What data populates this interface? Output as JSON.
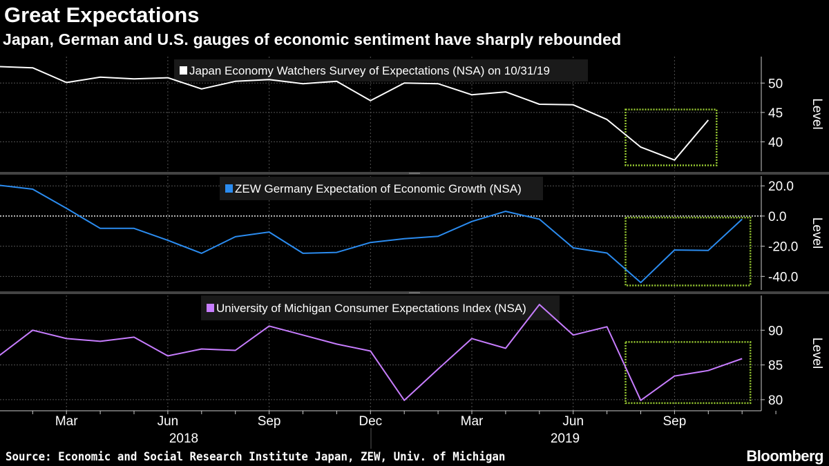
{
  "header": {
    "title": "Great Expectations",
    "subtitle": "Japan, German and U.S. gauges of economic sentiment have sharply rebounded"
  },
  "footer": {
    "source": "Source: Economic and Social Research Institute Japan, ZEW, Univ. of Michigan",
    "logo": "Bloomberg"
  },
  "colors": {
    "background": "#000000",
    "japan": "#ffffff",
    "zew": "#2b8cf0",
    "michigan": "#c77dff",
    "highlight_box": "#9acd32",
    "grid": "#666666"
  },
  "chart_data": [
    {
      "type": "line",
      "name": "Japan Economy Watchers Survey of Expectations (NSA) on 10/31/19",
      "ylabel": "Level",
      "ylim": [
        35,
        54.5
      ],
      "yticks": [
        40,
        45,
        50
      ],
      "tick_format": "0",
      "x_start": "2018-01",
      "color": "#ffffff",
      "values": [
        52.8,
        52.6,
        50.1,
        51.0,
        50.7,
        50.9,
        49.0,
        50.3,
        50.6,
        49.9,
        50.3,
        47.0,
        50.0,
        49.9,
        48.0,
        48.5,
        46.4,
        46.3,
        43.8,
        39.1,
        36.9,
        43.7
      ],
      "highlight": {
        "from": "2019-08",
        "to": "2019-10",
        "ymin": 36,
        "ymax": 45.5
      }
    },
    {
      "type": "line",
      "name": "ZEW Germany Expectation of Economic Growth (NSA)",
      "ylabel": "Level",
      "ylim": [
        -49,
        26.5
      ],
      "yticks": [
        -40,
        -20,
        0,
        20
      ],
      "tick_format": "0.0",
      "zero_line": true,
      "x_start": "2018-01",
      "color": "#2b8cf0",
      "values": [
        20.4,
        17.8,
        5.1,
        -8.2,
        -8.2,
        -16.1,
        -24.7,
        -13.7,
        -10.6,
        -24.7,
        -24.1,
        -17.5,
        -15.0,
        -13.4,
        -3.6,
        3.1,
        -2.1,
        -21.1,
        -24.5,
        -44.1,
        -22.5,
        -22.8,
        -2.1
      ],
      "highlight": {
        "from": "2019-08",
        "to": "2019-11",
        "ymin": -46,
        "ymax": -1
      }
    },
    {
      "type": "line",
      "name": "University of Michigan Consumer Expectations Index (NSA)",
      "ylabel": "Level",
      "ylim": [
        78.4,
        95
      ],
      "yticks": [
        80,
        85,
        90
      ],
      "tick_format": "0",
      "x_start": "2018-01",
      "color": "#c77dff",
      "values": [
        86.3,
        90.0,
        88.8,
        88.4,
        89.0,
        86.3,
        87.3,
        87.1,
        90.6,
        89.3,
        88.0,
        87.0,
        79.9,
        84.4,
        88.8,
        87.4,
        93.7,
        89.3,
        90.5,
        79.9,
        83.4,
        84.2,
        85.9
      ],
      "highlight": {
        "from": "2019-08",
        "to": "2019-11",
        "ymin": 79.5,
        "ymax": 88.3
      }
    }
  ],
  "x_axis": {
    "month_labels": [
      {
        "label": "Mar",
        "date": "2018-03"
      },
      {
        "label": "Jun",
        "date": "2018-06"
      },
      {
        "label": "Sep",
        "date": "2018-09"
      },
      {
        "label": "Dec",
        "date": "2018-12"
      },
      {
        "label": "Mar",
        "date": "2019-03"
      },
      {
        "label": "Jun",
        "date": "2019-06"
      },
      {
        "label": "Sep",
        "date": "2019-09"
      }
    ],
    "year_labels": [
      {
        "label": "2018",
        "date": "2018"
      },
      {
        "label": "2019",
        "date": "2019"
      }
    ]
  }
}
